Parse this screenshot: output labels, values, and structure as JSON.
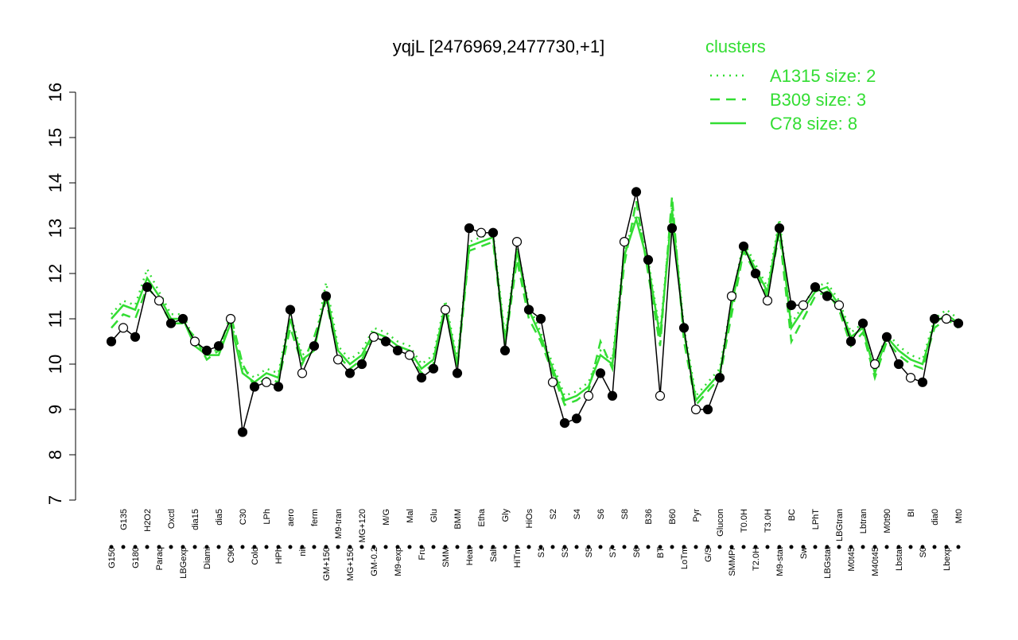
{
  "chart_data": {
    "type": "line",
    "title": "yqjL [2476969,2477730,+1]",
    "legend_title": "clusters",
    "legend_position": "top-right",
    "ylim": [
      7,
      16
    ],
    "yticks": [
      7,
      8,
      9,
      10,
      11,
      12,
      13,
      14,
      15,
      16
    ],
    "categories": [
      "G150",
      "G135",
      "G180",
      "H2O2",
      "Paraq",
      "Oxctl",
      "LBGexp",
      "dia15",
      "Diami",
      "dia5",
      "C90",
      "C30",
      "Cold",
      "LPh",
      "HPh",
      "aero",
      "nit",
      "ferm",
      "GM+150",
      "M9-tran",
      "MG+150",
      "MG+120",
      "GM-0.2",
      "M/G",
      "M9-exp",
      "Mal",
      "Fru",
      "Glu",
      "SMM",
      "BMM",
      "Heat",
      "Etha",
      "Salt",
      "Gly",
      "HiTm",
      "HiOs",
      "S1",
      "S2",
      "S3",
      "S4",
      "S5",
      "S6",
      "S7",
      "S8",
      "S6",
      "B36",
      "BT",
      "B60",
      "LoTm",
      "Pyr",
      "G/S",
      "Glucon",
      "SMMPr",
      "T0.0H",
      "T2.0H",
      "T3.0H",
      "M9-stat",
      "BC",
      "Sw",
      "LPhT",
      "LBGstat",
      "LBGtran",
      "M0t45",
      "Lbtran",
      "M40t45",
      "M0t90",
      "Lbstat",
      "BI",
      "S0",
      "dia0",
      "Lbexp",
      "Mt0"
    ],
    "values": [
      10.5,
      10.8,
      10.6,
      11.7,
      11.4,
      10.9,
      11.0,
      10.5,
      10.3,
      10.4,
      11.0,
      8.5,
      9.5,
      9.6,
      9.5,
      11.2,
      9.8,
      10.4,
      11.5,
      10.1,
      9.8,
      10.0,
      10.6,
      10.5,
      10.3,
      10.2,
      9.7,
      9.9,
      11.2,
      9.8,
      13.0,
      12.9,
      12.9,
      10.3,
      12.7,
      11.2,
      11.0,
      9.6,
      8.7,
      8.8,
      9.3,
      9.8,
      9.3,
      12.7,
      13.8,
      12.3,
      9.3,
      13.0,
      10.8,
      9.0,
      9.0,
      9.7,
      11.5,
      12.6,
      12.0,
      11.4,
      13.0,
      11.3,
      11.3,
      11.7,
      11.5,
      11.3,
      10.5,
      10.9,
      10.0,
      10.6,
      10.0,
      9.7,
      9.6,
      11.0,
      11.0,
      10.9
    ],
    "color": "#000000",
    "series": [
      {
        "name": "A1315 size: 2",
        "color": "#33dd33",
        "dash": "dotted",
        "values": [
          11.1,
          11.4,
          11.3,
          12.1,
          11.6,
          11.1,
          11.1,
          10.5,
          10.3,
          10.3,
          11.0,
          9.9,
          9.7,
          9.9,
          9.8,
          11.1,
          10.2,
          10.4,
          11.8,
          10.4,
          10.1,
          10.3,
          10.8,
          10.7,
          10.5,
          10.4,
          10.0,
          10.2,
          11.4,
          10.1,
          12.7,
          12.8,
          12.9,
          10.6,
          12.6,
          11.3,
          10.7,
          10.0,
          9.3,
          9.4,
          9.6,
          10.3,
          10.1,
          12.5,
          13.3,
          12.3,
          10.7,
          13.5,
          10.8,
          9.3,
          9.6,
          9.9,
          11.4,
          12.7,
          12.2,
          11.7,
          13.2,
          10.9,
          11.3,
          11.7,
          11.8,
          11.4,
          10.7,
          10.9,
          9.9,
          10.7,
          10.4,
          10.2,
          10.1,
          11.0,
          11.2,
          11.0
        ]
      },
      {
        "name": "B309 size: 3",
        "color": "#33dd33",
        "dash": "dashed",
        "values": [
          10.8,
          11.1,
          11.0,
          11.7,
          11.4,
          10.9,
          10.9,
          10.6,
          10.1,
          10.3,
          11.1,
          10.0,
          9.5,
          9.7,
          9.6,
          10.8,
          10.0,
          10.6,
          11.4,
          10.2,
          9.9,
          10.1,
          10.6,
          10.5,
          10.3,
          10.2,
          9.8,
          10.0,
          11.2,
          9.9,
          12.5,
          12.6,
          12.7,
          10.4,
          12.3,
          11.0,
          10.5,
          9.8,
          9.1,
          9.2,
          9.4,
          10.5,
          9.9,
          12.2,
          13.6,
          12.0,
          10.4,
          13.7,
          10.5,
          9.1,
          9.4,
          9.7,
          11.1,
          12.5,
          12.0,
          11.5,
          12.9,
          10.5,
          11.0,
          11.5,
          11.6,
          11.2,
          10.4,
          10.7,
          9.7,
          10.5,
          10.2,
          10.0,
          9.9,
          10.8,
          11.0,
          10.8
        ]
      },
      {
        "name": "C78 size: 8",
        "color": "#33dd33",
        "dash": "solid",
        "values": [
          11.0,
          11.3,
          11.2,
          11.9,
          11.5,
          11.0,
          11.0,
          10.4,
          10.2,
          10.2,
          10.9,
          9.8,
          9.6,
          9.8,
          9.7,
          11.0,
          10.1,
          10.3,
          11.6,
          10.3,
          10.0,
          10.2,
          10.7,
          10.6,
          10.4,
          10.3,
          9.9,
          10.1,
          11.3,
          10.0,
          12.6,
          12.7,
          12.8,
          10.5,
          12.5,
          11.2,
          10.6,
          9.9,
          9.2,
          9.3,
          9.5,
          10.2,
          10.0,
          12.4,
          13.2,
          12.2,
          10.6,
          13.4,
          10.7,
          9.2,
          9.5,
          9.8,
          11.3,
          12.6,
          12.1,
          11.6,
          13.1,
          10.8,
          11.2,
          11.6,
          11.7,
          11.3,
          10.6,
          10.8,
          9.8,
          10.6,
          10.3,
          10.1,
          10.0,
          10.9,
          11.1,
          10.9
        ]
      }
    ]
  }
}
